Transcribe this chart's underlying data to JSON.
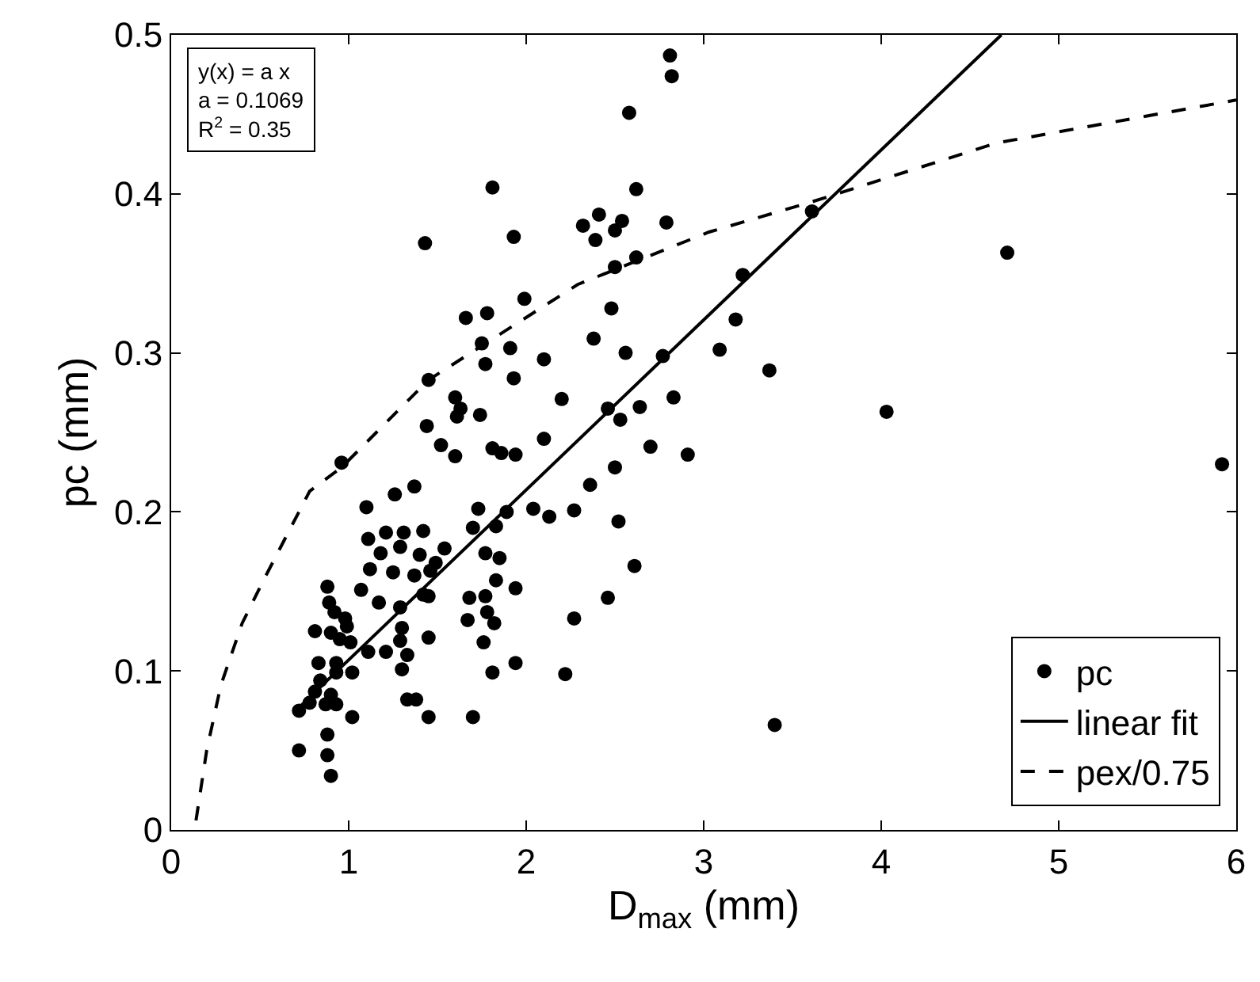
{
  "chart_data": {
    "type": "scatter",
    "xlabel": "D$_{max}$ (mm)",
    "ylabel": "pc (mm)",
    "xlim": [
      0,
      6
    ],
    "xticks": [
      0,
      1,
      2,
      3,
      4,
      5,
      6
    ],
    "ylim": [
      0,
      0.5
    ],
    "yticks": [
      0,
      0.1,
      0.2,
      0.3,
      0.4,
      0.5
    ],
    "grid": false,
    "legend": "bottom right",
    "annotations": [
      "y(x) = a x",
      "a = 0.1069",
      "R$^{2}$ = 0.35"
    ],
    "series": [
      {
        "name": "pc",
        "marker": "circle",
        "color": "#000000",
        "x": [
          2.81,
          2.82,
          2.58,
          1.81,
          2.62,
          1.43,
          1.93,
          2.41,
          2.32,
          2.39,
          2.5,
          2.54,
          2.79,
          2.5,
          2.62,
          1.99,
          2.48,
          1.66,
          1.78,
          1.75,
          1.91,
          1.45,
          1.77,
          1.93,
          2.1,
          2.38,
          2.56,
          2.77,
          1.6,
          1.63,
          1.61,
          1.74,
          2.2,
          2.46,
          2.53,
          2.64,
          2.83,
          1.44,
          1.52,
          1.6,
          1.81,
          1.86,
          1.94,
          2.1,
          2.7,
          2.91,
          2.5,
          0.96,
          2.36,
          1.37,
          1.26,
          1.1,
          1.73,
          1.89,
          2.04,
          2.13,
          2.27,
          2.52,
          1.7,
          1.83,
          1.11,
          1.21,
          1.31,
          1.42,
          1.29,
          1.18,
          1.4,
          1.54,
          1.77,
          1.85,
          1.49,
          1.12,
          1.46,
          2.61,
          1.25,
          1.37,
          1.83,
          0.88,
          1.94,
          1.07,
          1.17,
          1.42,
          1.45,
          1.68,
          1.77,
          2.46,
          0.89,
          1.29,
          1.67,
          1.78,
          1.82,
          2.27,
          0.92,
          0.98,
          0.99,
          1.3,
          0.81,
          0.9,
          0.95,
          1.01,
          1.11,
          1.21,
          1.29,
          1.45,
          1.76,
          1.33,
          0.83,
          0.93,
          1.02,
          1.94,
          1.3,
          0.93,
          1.81,
          2.22,
          0.84,
          0.81,
          0.9,
          0.78,
          0.87,
          0.72,
          0.93,
          1.33,
          1.38,
          1.02,
          1.45,
          1.7,
          0.88,
          0.72,
          0.88,
          0.9,
          3.61,
          4.71,
          3.22,
          3.18,
          3.09,
          3.37,
          4.03,
          5.92,
          3.4
        ],
        "values": [
          0.487,
          0.474,
          0.451,
          0.404,
          0.403,
          0.369,
          0.373,
          0.387,
          0.38,
          0.371,
          0.377,
          0.383,
          0.382,
          0.354,
          0.36,
          0.334,
          0.328,
          0.322,
          0.325,
          0.306,
          0.303,
          0.283,
          0.293,
          0.284,
          0.296,
          0.309,
          0.3,
          0.298,
          0.272,
          0.265,
          0.26,
          0.261,
          0.271,
          0.265,
          0.258,
          0.266,
          0.272,
          0.254,
          0.242,
          0.235,
          0.24,
          0.237,
          0.236,
          0.246,
          0.241,
          0.236,
          0.228,
          0.231,
          0.217,
          0.216,
          0.211,
          0.203,
          0.202,
          0.2,
          0.202,
          0.197,
          0.201,
          0.194,
          0.19,
          0.191,
          0.183,
          0.187,
          0.187,
          0.188,
          0.178,
          0.174,
          0.173,
          0.177,
          0.174,
          0.171,
          0.168,
          0.164,
          0.163,
          0.166,
          0.162,
          0.16,
          0.157,
          0.153,
          0.152,
          0.151,
          0.143,
          0.148,
          0.147,
          0.146,
          0.147,
          0.146,
          0.143,
          0.14,
          0.132,
          0.137,
          0.13,
          0.133,
          0.137,
          0.133,
          0.128,
          0.127,
          0.125,
          0.124,
          0.12,
          0.118,
          0.112,
          0.112,
          0.119,
          0.121,
          0.118,
          0.11,
          0.105,
          0.105,
          0.099,
          0.105,
          0.101,
          0.099,
          0.099,
          0.098,
          0.094,
          0.087,
          0.085,
          0.08,
          0.079,
          0.075,
          0.079,
          0.082,
          0.082,
          0.071,
          0.071,
          0.071,
          0.06,
          0.05,
          0.047,
          0.034,
          0.389,
          0.363,
          0.349,
          0.321,
          0.302,
          0.289,
          0.263,
          0.23,
          0.066
        ]
      },
      {
        "name": "linear fit",
        "type": "line",
        "marker": "none",
        "line_style": "solid",
        "color": "#000000",
        "x": [
          0.72,
          4.677
        ],
        "values": [
          0.077,
          0.5
        ]
      },
      {
        "name": "pex/0.75",
        "type": "line",
        "marker": "none",
        "line_style": "dashed",
        "color": "#000000",
        "x": [
          0.14,
          0.2,
          0.28,
          0.4,
          0.52,
          0.78,
          0.96,
          1.45,
          2.29,
          3.03,
          3.61,
          4.65,
          6.0
        ],
        "values": [
          0.006,
          0.05,
          0.091,
          0.13,
          0.157,
          0.213,
          0.228,
          0.283,
          0.343,
          0.376,
          0.395,
          0.432,
          0.459
        ]
      }
    ]
  }
}
